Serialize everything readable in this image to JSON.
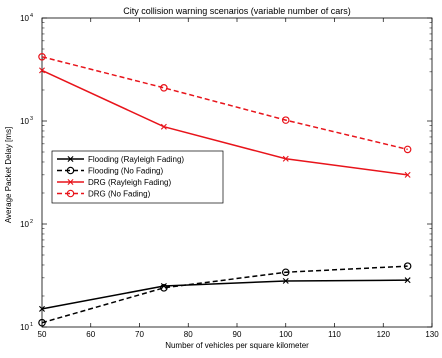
{
  "chart_data": {
    "type": "line",
    "title": "City collision warning scenarios (variable number of cars)",
    "xlabel": "Number of vehicles per square kilometer",
    "ylabel": "Average Packet Delay [ms]",
    "xlim": [
      50,
      130
    ],
    "x_ticks": [
      50,
      60,
      70,
      80,
      90,
      100,
      110,
      120,
      130
    ],
    "ylim": [
      10,
      10000
    ],
    "yscale": "log",
    "y_ticks": [
      {
        "value": 10,
        "base": "10",
        "exp": "1"
      },
      {
        "value": 100,
        "base": "10",
        "exp": "2"
      },
      {
        "value": 1000,
        "base": "10",
        "exp": "3"
      },
      {
        "value": 10000,
        "base": "10",
        "exp": "4"
      }
    ],
    "grid": false,
    "legend_position": "center-left",
    "series": [
      {
        "name": "Flooding (Rayleigh Fading)",
        "color": "#000000",
        "dash": "solid",
        "marker": "x",
        "x": [
          50,
          75,
          100,
          125
        ],
        "y": [
          15,
          25,
          28,
          28.5
        ]
      },
      {
        "name": "Flooding (No Fading)",
        "color": "#000000",
        "dash": "dashed",
        "marker": "o",
        "x": [
          50,
          75,
          100,
          125
        ],
        "y": [
          11,
          24,
          34,
          39
        ]
      },
      {
        "name": "DRG (Rayleigh Fading)",
        "color": "#e8141b",
        "dash": "solid",
        "marker": "x",
        "x": [
          50,
          75,
          100,
          125
        ],
        "y": [
          3100,
          880,
          430,
          300
        ]
      },
      {
        "name": "DRG (No Fading)",
        "color": "#e8141b",
        "dash": "dashed",
        "marker": "o",
        "x": [
          50,
          75,
          100,
          125
        ],
        "y": [
          4200,
          2100,
          1020,
          530
        ]
      }
    ]
  }
}
